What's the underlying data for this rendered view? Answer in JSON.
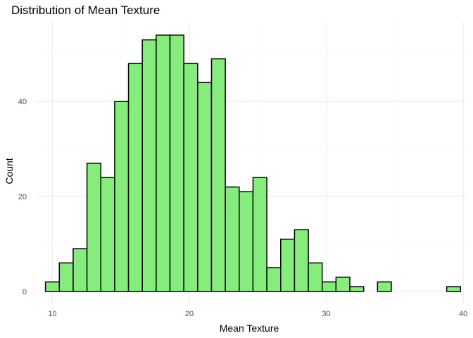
{
  "chart_data": {
    "type": "bar",
    "title": "Distribution of Mean Texture",
    "xlabel": "Mean Texture",
    "ylabel": "Count",
    "bar_color": "#84ED7C",
    "bar_border_color": "#000000",
    "grid": true,
    "xlim": [
      8.8,
      40.3
    ],
    "ylim": [
      -2.7,
      56.8
    ],
    "x_ticks": [
      10,
      20,
      30,
      40
    ],
    "y_ticks": [
      0,
      20,
      40
    ],
    "x_minor_ticks": [
      15,
      25,
      35
    ],
    "y_minor_ticks": [
      10,
      30,
      50
    ],
    "bins": [
      {
        "x0": 9.5,
        "x1": 10.51,
        "count": 2
      },
      {
        "x0": 10.51,
        "x1": 11.52,
        "count": 6
      },
      {
        "x0": 11.52,
        "x1": 12.53,
        "count": 9
      },
      {
        "x0": 12.53,
        "x1": 13.54,
        "count": 27
      },
      {
        "x0": 13.54,
        "x1": 14.55,
        "count": 24
      },
      {
        "x0": 14.55,
        "x1": 15.56,
        "count": 40
      },
      {
        "x0": 15.56,
        "x1": 16.57,
        "count": 48
      },
      {
        "x0": 16.57,
        "x1": 17.58,
        "count": 53
      },
      {
        "x0": 17.58,
        "x1": 18.59,
        "count": 54
      },
      {
        "x0": 18.59,
        "x1": 19.6,
        "count": 54
      },
      {
        "x0": 19.6,
        "x1": 20.61,
        "count": 48
      },
      {
        "x0": 20.61,
        "x1": 21.62,
        "count": 44
      },
      {
        "x0": 21.62,
        "x1": 22.63,
        "count": 49
      },
      {
        "x0": 22.63,
        "x1": 23.64,
        "count": 22
      },
      {
        "x0": 23.64,
        "x1": 24.65,
        "count": 21
      },
      {
        "x0": 24.65,
        "x1": 25.66,
        "count": 24
      },
      {
        "x0": 25.66,
        "x1": 26.67,
        "count": 5
      },
      {
        "x0": 26.67,
        "x1": 27.68,
        "count": 11
      },
      {
        "x0": 27.68,
        "x1": 28.69,
        "count": 13
      },
      {
        "x0": 28.69,
        "x1": 29.7,
        "count": 6
      },
      {
        "x0": 29.7,
        "x1": 30.71,
        "count": 2
      },
      {
        "x0": 30.71,
        "x1": 31.72,
        "count": 3
      },
      {
        "x0": 31.72,
        "x1": 32.73,
        "count": 1
      },
      {
        "x0": 32.73,
        "x1": 33.74,
        "count": 0
      },
      {
        "x0": 33.74,
        "x1": 34.75,
        "count": 2
      },
      {
        "x0": 34.75,
        "x1": 35.76,
        "count": 0
      },
      {
        "x0": 35.76,
        "x1": 36.77,
        "count": 0
      },
      {
        "x0": 36.77,
        "x1": 37.78,
        "count": 0
      },
      {
        "x0": 37.78,
        "x1": 38.79,
        "count": 0
      },
      {
        "x0": 38.79,
        "x1": 39.8,
        "count": 1
      }
    ]
  }
}
